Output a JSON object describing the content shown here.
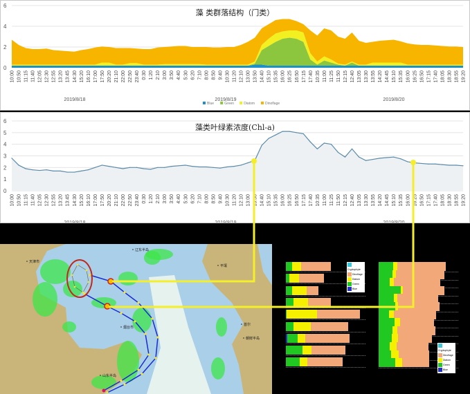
{
  "chart_data": [
    {
      "type": "area",
      "stacked": true,
      "title": "藻 类群落结构（门类）",
      "ylim": [
        0,
        6
      ],
      "yticks": [
        0,
        2,
        4,
        6
      ],
      "grid": true,
      "legend": "bottom",
      "x": [
        "10:00",
        "10:50",
        "11:15",
        "11:40",
        "12:05",
        "12:30",
        "12:55",
        "13:20",
        "13:45",
        "14:30",
        "15:20",
        "16:10",
        "17:00",
        "17:50",
        "20:20",
        "21:10",
        "22:00",
        "22:50",
        "23:40",
        "0:30",
        "1:20",
        "2:10",
        "3:00",
        "3:50",
        "4:40",
        "5:30",
        "6:20",
        "7:10",
        "8:00",
        "8:50",
        "9:40",
        "10:30",
        "11:20",
        "12:10",
        "13:00",
        "13:50",
        "14:40",
        "15:10",
        "15:35",
        "16:00",
        "16:25",
        "16:50",
        "17:15",
        "17:40",
        "10:35",
        "11:00",
        "11:25",
        "11:50",
        "12:15",
        "12:40",
        "13:05",
        "13:30",
        "13:55",
        "14:20",
        "14:45",
        "15:10",
        "15:35",
        "16:00",
        "16:25",
        "16:50",
        "17:15",
        "17:40",
        "18:05",
        "18:30",
        "18:55",
        "19:20"
      ],
      "dates": [
        "2019/8/18",
        "2019/8/19",
        "2019/8/20"
      ],
      "series": [
        {
          "name": "Blue",
          "color": "#1e90c8",
          "values": [
            0.2,
            0.2,
            0.2,
            0.2,
            0.2,
            0.2,
            0.2,
            0.2,
            0.2,
            0.2,
            0.2,
            0.2,
            0.2,
            0.2,
            0.2,
            0.2,
            0.2,
            0.2,
            0.2,
            0.2,
            0.2,
            0.2,
            0.2,
            0.2,
            0.2,
            0.2,
            0.2,
            0.2,
            0.2,
            0.2,
            0.2,
            0.2,
            0.2,
            0.2,
            0.2,
            0.3,
            0.3,
            0.2,
            0.2,
            0.2,
            0.2,
            0.2,
            0.2,
            0.2,
            0.2,
            0.2,
            0.2,
            0.2,
            0.2,
            0.2,
            0.2,
            0.2,
            0.2,
            0.2,
            0.2,
            0.2,
            0.2,
            0.2,
            0.2,
            0.2,
            0.2,
            0.2,
            0.2,
            0.2,
            0.2,
            0.2
          ]
        },
        {
          "name": "Green",
          "color": "#8cc63e",
          "values": [
            0,
            0,
            0,
            0,
            0,
            0,
            0,
            0,
            0,
            0,
            0,
            0,
            0,
            0,
            0,
            0,
            0,
            0,
            0,
            0,
            0,
            0,
            0,
            0,
            0,
            0,
            0,
            0,
            0,
            0,
            0,
            0,
            0,
            0,
            0,
            0.1,
            1.4,
            1.9,
            2.3,
            2.6,
            2.7,
            2.6,
            2.3,
            0.6,
            0.1,
            0.5,
            0.3,
            0.1,
            0,
            0.3,
            0,
            0,
            0,
            0,
            0,
            0,
            0,
            0,
            0,
            0,
            0,
            0,
            0,
            0,
            0,
            0
          ]
        },
        {
          "name": "Diatom",
          "color": "#f2f020",
          "values": [
            0.1,
            0.1,
            0.1,
            0.1,
            0.1,
            0.1,
            0.1,
            0.1,
            0.1,
            0.1,
            0.1,
            0.1,
            0.1,
            0.3,
            0.3,
            0.1,
            0.1,
            0.25,
            0.25,
            0.1,
            0.1,
            0.1,
            0.15,
            0.15,
            0.15,
            0.15,
            0.15,
            0.15,
            0.1,
            0.1,
            0.1,
            0.1,
            0.1,
            0.1,
            0.1,
            0.2,
            0.5,
            0.7,
            0.8,
            0.7,
            0.7,
            0.8,
            0.9,
            0.6,
            0.3,
            0.4,
            0.3,
            0.1,
            0.1,
            0.1,
            0.1,
            0.1,
            0.3,
            0.3,
            0.3,
            0.3,
            0.3,
            0.1,
            0.1,
            0.1,
            0.1,
            0.1,
            0.1,
            0.1,
            0.1,
            0.1
          ]
        },
        {
          "name": "Dinoflage",
          "color": "#f7b500",
          "values": [
            2.4,
            1.9,
            1.6,
            1.5,
            1.5,
            1.55,
            1.4,
            1.35,
            1.3,
            1.25,
            1.4,
            1.5,
            1.65,
            1.55,
            1.5,
            1.6,
            1.6,
            1.45,
            1.4,
            1.5,
            1.5,
            1.65,
            1.65,
            1.7,
            1.75,
            1.75,
            1.65,
            1.65,
            1.7,
            1.65,
            1.65,
            1.7,
            1.7,
            1.9,
            2.2,
            2.3,
            1.6,
            1.4,
            1.3,
            1.2,
            1.1,
            0.9,
            0.8,
            2.2,
            2.5,
            2.7,
            2.8,
            2.6,
            2.5,
            2.8,
            2.3,
            2.1,
            2.0,
            2.1,
            2.15,
            2.2,
            2.05,
            2.05,
            1.95,
            1.9,
            1.9,
            1.85,
            1.8,
            1.75,
            1.75,
            1.7
          ]
        }
      ]
    },
    {
      "type": "line",
      "title": "藻类叶绿素浓度(Chl-a)",
      "ylim": [
        0,
        6
      ],
      "yticks": [
        0,
        1,
        2,
        3,
        4,
        5,
        6
      ],
      "color": "#5a8aa8",
      "x": [
        "10:00",
        "10:50",
        "11:15",
        "11:40",
        "12:05",
        "12:30",
        "12:55",
        "13:20",
        "13:45",
        "14:30",
        "15:20",
        "16:10",
        "17:00",
        "17:50",
        "20:20",
        "21:10",
        "22:00",
        "22:50",
        "23:40",
        "0:30",
        "1:20",
        "2:10",
        "3:00",
        "3:50",
        "4:40",
        "5:30",
        "6:20",
        "7:10",
        "8:00",
        "8:50",
        "9:40",
        "10:30",
        "11:20",
        "12:10",
        "13:00",
        "13:50",
        "14:40",
        "15:10",
        "15:35",
        "16:00",
        "16:25",
        "16:50",
        "17:15",
        "17:40",
        "10:35",
        "11:00",
        "11:25",
        "11:50",
        "12:15",
        "12:40",
        "13:05",
        "13:30",
        "13:55",
        "14:20",
        "14:45",
        "15:10",
        "15:35",
        "16:00",
        "16:25",
        "16:50",
        "17:15",
        "17:40",
        "18:05",
        "18:30",
        "18:55",
        "19:20"
      ],
      "dates": [
        "2019/8/18",
        "2019/8/19",
        "2019/8/20"
      ],
      "values": [
        2.8,
        2.2,
        1.9,
        1.8,
        1.75,
        1.8,
        1.7,
        1.7,
        1.6,
        1.6,
        1.7,
        1.8,
        2.0,
        2.2,
        2.1,
        2.0,
        1.9,
        2.0,
        2.0,
        1.9,
        1.85,
        2.0,
        2.0,
        2.1,
        2.15,
        2.2,
        2.1,
        2.05,
        2.05,
        2.0,
        1.95,
        2.05,
        2.1,
        2.2,
        2.4,
        2.6,
        3.9,
        4.5,
        4.8,
        5.1,
        5.1,
        5.0,
        4.9,
        4.2,
        3.6,
        4.1,
        4.0,
        3.3,
        2.9,
        3.6,
        2.9,
        2.6,
        2.7,
        2.8,
        2.85,
        2.9,
        2.75,
        2.5,
        2.4,
        2.35,
        2.3,
        2.3,
        2.25,
        2.2,
        2.2,
        2.15
      ],
      "markers": [
        "13:50",
        "16:25"
      ]
    },
    {
      "type": "bar",
      "orientation": "horizontal",
      "stacked": true,
      "group": "left",
      "series_names": [
        "Blue",
        "Green",
        "Diatom",
        "Dinoflage"
      ],
      "rows": [
        [
          0,
          28,
          37,
          130
        ],
        [
          0,
          15,
          42,
          108
        ],
        [
          0,
          27,
          63,
          50
        ],
        [
          0,
          33,
          62,
          100
        ],
        [
          0,
          3,
          132,
          185
        ],
        [
          0,
          33,
          75,
          162
        ],
        [
          7,
          45,
          31,
          194
        ],
        [
          0,
          72,
          38,
          148
        ],
        [
          0,
          60,
          32,
          155
        ]
      ]
    },
    {
      "type": "bar",
      "orientation": "horizontal",
      "stacked": true,
      "group": "right",
      "series_names": [
        "Blue",
        "Green",
        "Diatom",
        "Dinoflage"
      ],
      "rows": [
        [
          0,
          62,
          20,
          210
        ],
        [
          0,
          60,
          15,
          209
        ],
        [
          0,
          47,
          20,
          200
        ],
        [
          0,
          97,
          8,
          179
        ],
        [
          0,
          65,
          17,
          175
        ],
        [
          0,
          72,
          13,
          179
        ],
        [
          0,
          45,
          22,
          182
        ],
        [
          0,
          70,
          24,
          145
        ],
        [
          0,
          60,
          22,
          163
        ],
        [
          0,
          57,
          27,
          148
        ],
        [
          0,
          49,
          30,
          136
        ],
        [
          0,
          55,
          32,
          132
        ],
        [
          0,
          72,
          30,
          117
        ]
      ]
    }
  ],
  "bar_legend": [
    {
      "label": "Cryptophyte",
      "color": "#3cc8d8"
    },
    {
      "label": "Dinoflage",
      "color": "#f2a878"
    },
    {
      "label": "Diatom",
      "color": "#f5f000"
    },
    {
      "label": "Green",
      "color": "#22c822"
    },
    {
      "label": "Blue",
      "color": "#2030c8"
    }
  ],
  "bar_colors": [
    "#2030c8",
    "#22c822",
    "#f5f000",
    "#f2a878"
  ],
  "map": {
    "labels": [
      "天津市",
      "辽东半岛",
      "平壤",
      "烟台市",
      "山东半岛",
      "首尔",
      "朝鲜半岛"
    ],
    "land": "#c9b57a",
    "water": "#a9cfe9",
    "channel": "#e6f2ee",
    "algae": "#3ee64a",
    "route": "#1a2bd0",
    "point": "#f5e632",
    "highlight": "#c0281e"
  },
  "connector_color": "#f5ee2a"
}
